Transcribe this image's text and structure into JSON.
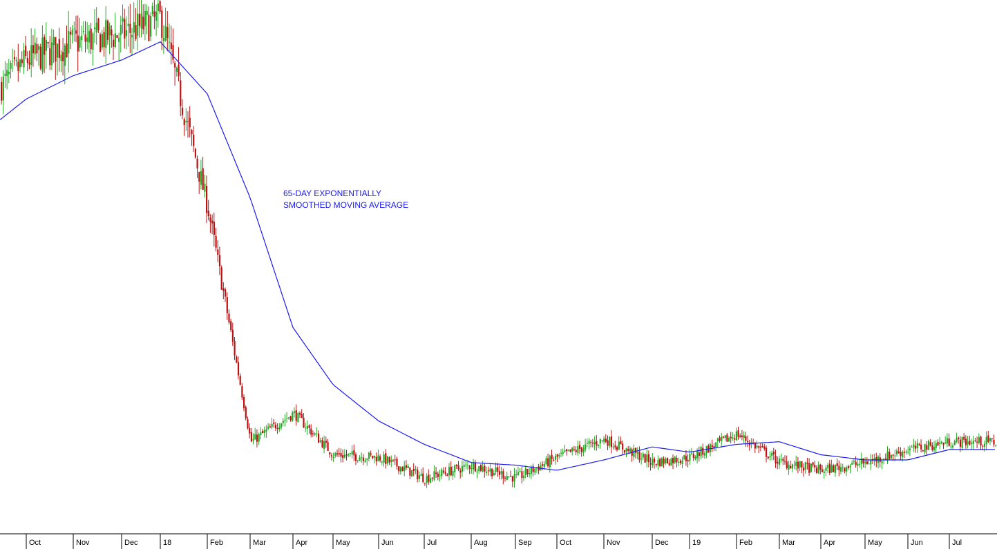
{
  "colors": {
    "background": "#ffffff",
    "up_candle": "#22aa22",
    "down_candle": "#bb1111",
    "moving_average": "#1a1aee",
    "axis": "#000000"
  },
  "chart_data": {
    "type": "candlestick",
    "title": "",
    "xlabel": "",
    "ylabel": "",
    "x_tick_labels": [
      "Oct",
      "Nov",
      "Dec",
      "18",
      "Feb",
      "Mar",
      "Apr",
      "May",
      "Jun",
      "Jul",
      "Aug",
      "Sep",
      "Oct",
      "Nov",
      "Dec",
      "19",
      "Feb",
      "Mar",
      "Apr",
      "May",
      "Jun",
      "Jul"
    ],
    "annotation": [
      "65-DAY EXPONENTIALLY",
      "SMOOTHED MOVING AVERAGE"
    ],
    "grid": false,
    "legend": "none",
    "price_range": [
      0,
      1000
    ],
    "series": [
      {
        "kind": "candles",
        "description_values": "approximate monthly closing levels on a 0-1000 relative scale",
        "monthly_close": [
          {
            "month": "Sep",
            "value": 845
          },
          {
            "month": "Oct",
            "value": 895
          },
          {
            "month": "Nov",
            "value": 930
          },
          {
            "month": "Dec",
            "value": 945
          },
          {
            "month": "18",
            "value": 975
          },
          {
            "month": "Feb",
            "value": 610
          },
          {
            "month": "Mar",
            "value": 160
          },
          {
            "month": "Apr",
            "value": 215
          },
          {
            "month": "May",
            "value": 135
          },
          {
            "month": "Jun",
            "value": 130
          },
          {
            "month": "Jul",
            "value": 90
          },
          {
            "month": "Aug",
            "value": 115
          },
          {
            "month": "Sep",
            "value": 90
          },
          {
            "month": "Oct",
            "value": 130
          },
          {
            "month": "Nov",
            "value": 165
          },
          {
            "month": "Dec",
            "value": 120
          },
          {
            "month": "19",
            "value": 130
          },
          {
            "month": "Feb",
            "value": 175
          },
          {
            "month": "Mar",
            "value": 120
          },
          {
            "month": "Apr",
            "value": 105
          },
          {
            "month": "May",
            "value": 120
          },
          {
            "month": "Jun",
            "value": 145
          },
          {
            "month": "Jul",
            "value": 160
          }
        ]
      },
      {
        "kind": "ema",
        "monthly_value": [
          {
            "month": "Sep",
            "value": 780
          },
          {
            "month": "Oct",
            "value": 820
          },
          {
            "month": "Nov",
            "value": 865
          },
          {
            "month": "Dec",
            "value": 895
          },
          {
            "month": "18",
            "value": 930
          },
          {
            "month": "Feb",
            "value": 830
          },
          {
            "month": "Mar",
            "value": 630
          },
          {
            "month": "Apr",
            "value": 380
          },
          {
            "month": "May",
            "value": 270
          },
          {
            "month": "Jun",
            "value": 200
          },
          {
            "month": "Jul",
            "value": 155
          },
          {
            "month": "Aug",
            "value": 120
          },
          {
            "month": "Sep",
            "value": 115
          },
          {
            "month": "Oct",
            "value": 105
          },
          {
            "month": "Nov",
            "value": 125
          },
          {
            "month": "Dec",
            "value": 150
          },
          {
            "month": "19",
            "value": 140
          },
          {
            "month": "Feb",
            "value": 155
          },
          {
            "month": "Mar",
            "value": 160
          },
          {
            "month": "Apr",
            "value": 135
          },
          {
            "month": "May",
            "value": 125
          },
          {
            "month": "Jun",
            "value": 125
          },
          {
            "month": "Jul",
            "value": 145
          }
        ]
      }
    ]
  }
}
